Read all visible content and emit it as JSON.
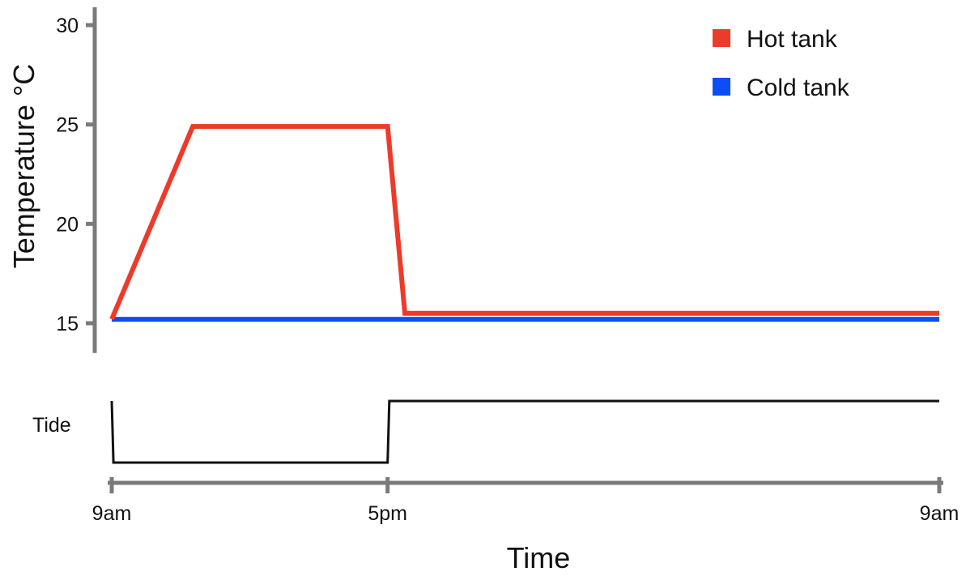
{
  "chart_data": {
    "type": "line",
    "xlabel": "Time",
    "ylabel": "Temperature °C",
    "x_ticks": [
      "9am",
      "5pm",
      "9am"
    ],
    "x_range_hours": [
      0,
      24
    ],
    "yticks": [
      15,
      20,
      25,
      30
    ],
    "ylim": [
      13.5,
      30.9
    ],
    "grid": false,
    "legend": "top-right",
    "series": [
      {
        "name": "Hot tank",
        "color": "#ee3a2a",
        "points": [
          [
            0,
            15.2
          ],
          [
            2.35,
            24.9
          ],
          [
            8.0,
            24.9
          ],
          [
            8.5,
            15.5
          ],
          [
            24,
            15.5
          ]
        ]
      },
      {
        "name": "Cold tank",
        "color": "#0a4ef5",
        "points": [
          [
            0,
            15.2
          ],
          [
            24,
            15.2
          ]
        ]
      }
    ],
    "tide": {
      "label": "Tide",
      "color": "#111111",
      "points": [
        [
          0,
          1
        ],
        [
          0.05,
          0
        ],
        [
          8.0,
          0
        ],
        [
          8.05,
          1
        ],
        [
          24,
          1
        ]
      ]
    }
  }
}
